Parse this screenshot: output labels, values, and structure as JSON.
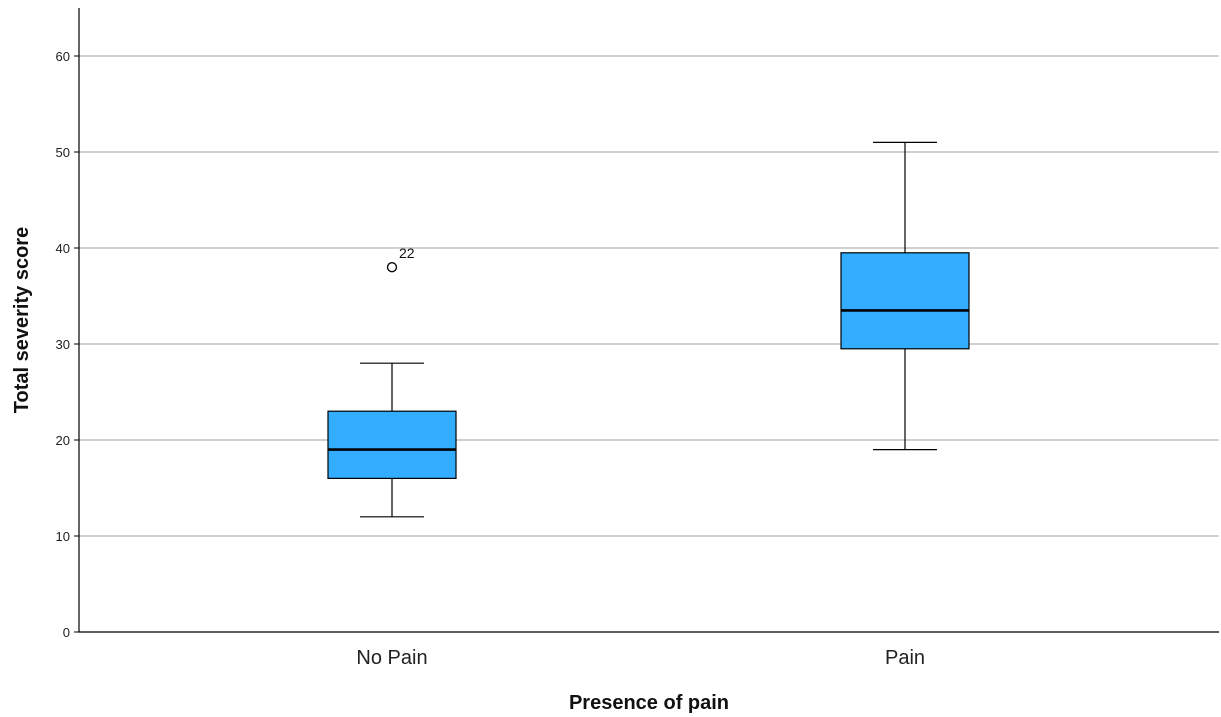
{
  "chart_data": {
    "type": "boxplot",
    "xlabel": "Presence of pain",
    "ylabel": "Total severity score",
    "ylim": [
      0,
      65
    ],
    "yticks": [
      0,
      10,
      20,
      30,
      40,
      50,
      60
    ],
    "grid": "horizontal",
    "box_color": "#33adff",
    "categories": [
      "No Pain",
      "Pain"
    ],
    "boxes": [
      {
        "category": "No Pain",
        "min": 12,
        "q1": 16,
        "median": 19,
        "q3": 23,
        "max": 28,
        "outliers": [
          {
            "value": 38,
            "label": "22"
          }
        ]
      },
      {
        "category": "Pain",
        "min": 19,
        "q1": 29.5,
        "median": 33.5,
        "q3": 39.5,
        "max": 51,
        "outliers": []
      }
    ]
  }
}
